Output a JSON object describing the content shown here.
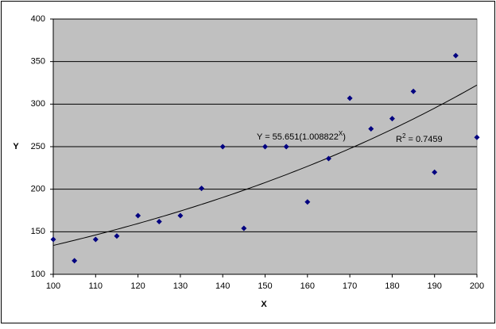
{
  "chart_data": {
    "type": "scatter",
    "x_label": "X",
    "y_label": "Y",
    "x": [
      100,
      105,
      110,
      115,
      120,
      125,
      130,
      135,
      140,
      145,
      150,
      155,
      160,
      165,
      170,
      175,
      180,
      185,
      190,
      195,
      200
    ],
    "series": [
      {
        "name": "Y",
        "color": "#000080",
        "values": [
          141,
          116,
          141,
          145,
          169,
          162,
          169,
          201,
          250,
          154,
          250,
          250,
          185,
          236,
          307,
          271,
          283,
          315,
          220,
          357,
          261
        ]
      }
    ],
    "xlim": [
      100,
      200
    ],
    "xticks": [
      100,
      110,
      120,
      130,
      140,
      150,
      160,
      170,
      180,
      190,
      200
    ],
    "ylim": [
      100,
      400
    ],
    "yticks": [
      100,
      150,
      200,
      250,
      300,
      350,
      400
    ],
    "grid": true,
    "trendline": {
      "type": "exponential",
      "a": 55.651,
      "b": 1.008822,
      "equation": {
        "text": "Y = 55.651(1.008822",
        "superscript": "X",
        "suffix": ")"
      },
      "r_squared": {
        "text": "R",
        "superscript": "2",
        "suffix": " = 0.7459"
      }
    }
  }
}
